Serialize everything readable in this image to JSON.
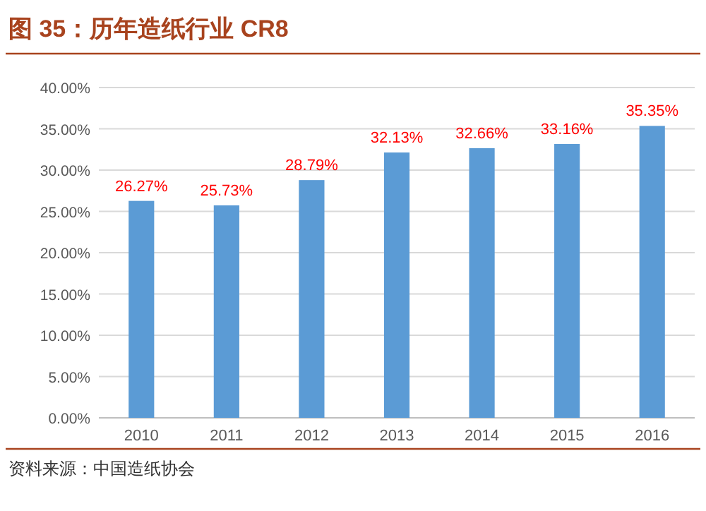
{
  "chart_data": {
    "type": "bar",
    "title": "图 35：历年造纸行业 CR8",
    "categories": [
      "2010",
      "2011",
      "2012",
      "2013",
      "2014",
      "2015",
      "2016"
    ],
    "values": [
      26.27,
      25.73,
      28.79,
      32.13,
      32.66,
      33.16,
      35.35
    ],
    "value_labels": [
      "26.27%",
      "25.73%",
      "28.79%",
      "32.13%",
      "32.66%",
      "33.16%",
      "35.35%"
    ],
    "color": "#5b9bd5",
    "ylim": [
      0,
      40
    ],
    "yticks": [
      {
        "value": 0,
        "label": "0.00%"
      },
      {
        "value": 5,
        "label": "5.00%"
      },
      {
        "value": 10,
        "label": "10.00%"
      },
      {
        "value": 15,
        "label": "15.00%"
      },
      {
        "value": 20,
        "label": "20.00%"
      },
      {
        "value": 25,
        "label": "25.00%"
      },
      {
        "value": 30,
        "label": "30.00%"
      },
      {
        "value": 35,
        "label": "35.00%"
      },
      {
        "value": 40,
        "label": "40.00%"
      }
    ],
    "grid": "y",
    "annotations": [
      "资料来源：中国造纸协会"
    ]
  }
}
